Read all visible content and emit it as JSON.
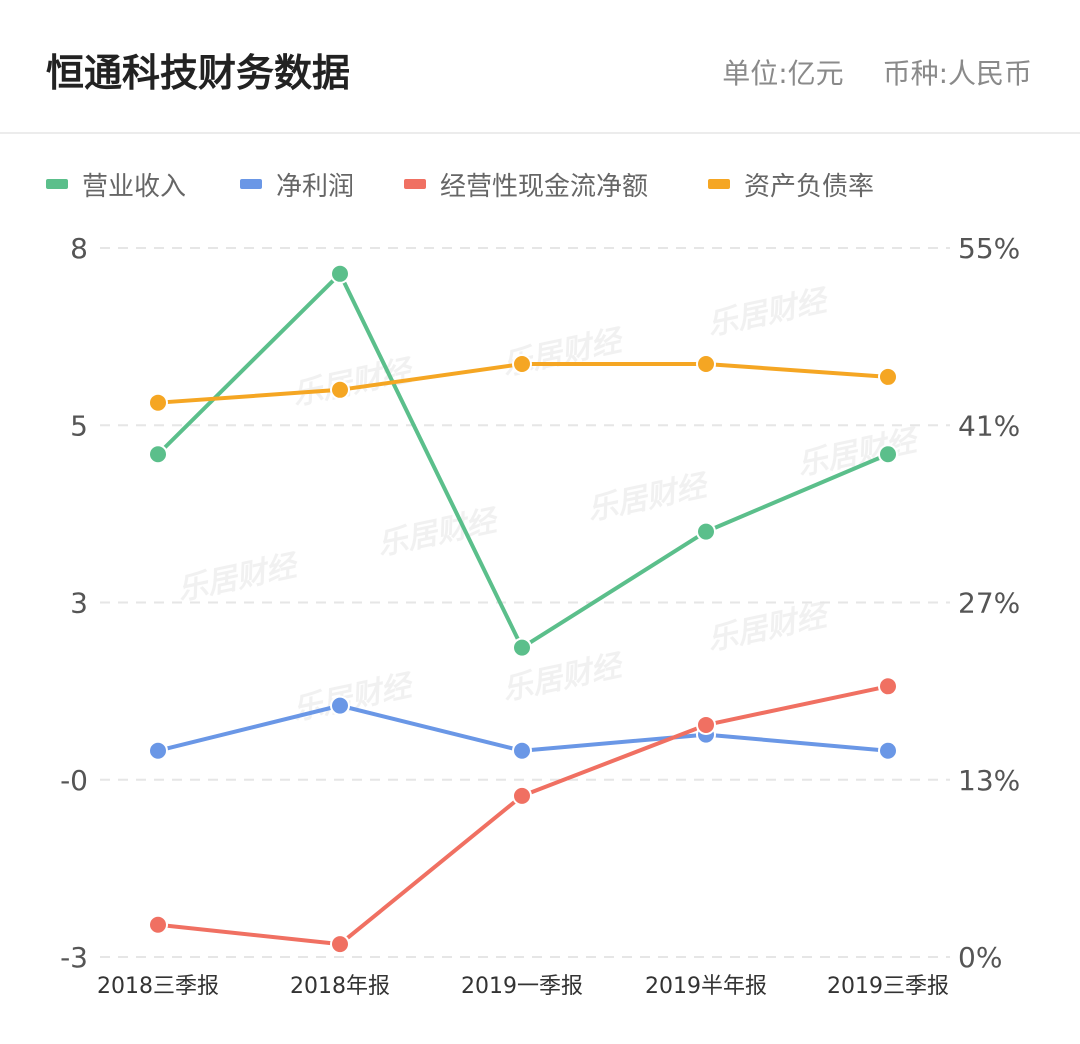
{
  "header": {
    "title": "恒通科技财务数据",
    "unit": "单位:亿元",
    "currency": "币种:人民币"
  },
  "watermark": "乐居财经",
  "chart_data": {
    "type": "line",
    "categories": [
      "2018三季报",
      "2018年报",
      "2019一季报",
      "2019半年报",
      "2019三季报"
    ],
    "left_axis": {
      "ticks": [
        "8",
        "5",
        "3",
        "-0",
        "-3"
      ],
      "range": [
        -3,
        8
      ]
    },
    "right_axis": {
      "ticks": [
        "55%",
        "41%",
        "27%",
        "13%",
        "0%"
      ],
      "range": [
        0,
        55
      ]
    },
    "grid": true,
    "legend_position": "top-left",
    "series": [
      {
        "name": "营业收入",
        "axis": "left",
        "color": "#5bbf8b",
        "values": [
          4.8,
          7.6,
          1.8,
          3.6,
          4.8
        ]
      },
      {
        "name": "净利润",
        "axis": "left",
        "color": "#6a97e6",
        "values": [
          0.2,
          0.9,
          0.2,
          0.45,
          0.2
        ]
      },
      {
        "name": "经营性现金流净额",
        "axis": "left",
        "color": "#f07062",
        "values": [
          -2.5,
          -2.8,
          -0.5,
          0.6,
          1.2
        ]
      },
      {
        "name": "资产负债率",
        "axis": "right",
        "color": "#f5a623",
        "values": [
          43,
          44,
          46,
          46,
          45
        ]
      }
    ]
  }
}
